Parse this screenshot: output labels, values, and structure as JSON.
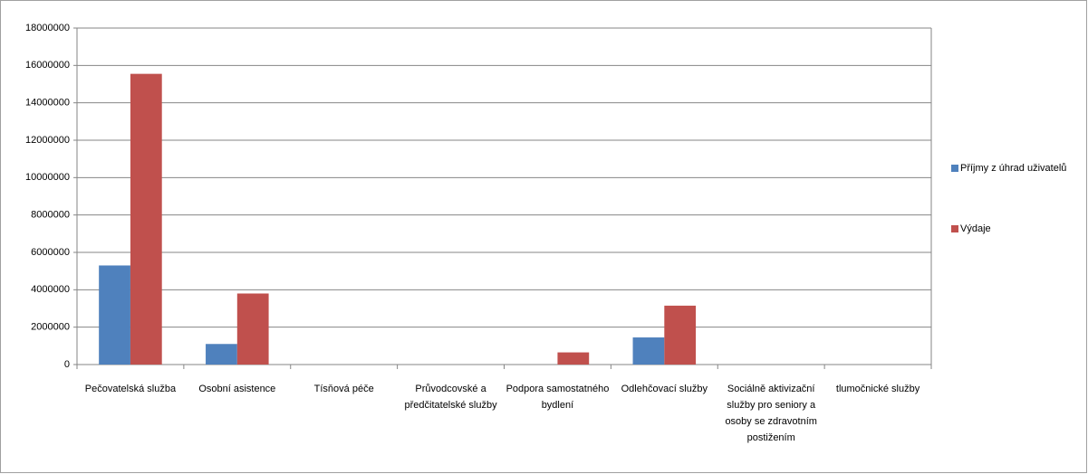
{
  "chart_data": {
    "type": "bar",
    "categories": [
      "Pečovatelská služba",
      "Osobní asistence",
      "Tísňová péče",
      "Průvodcovské a předčitatelské služby",
      "Podpora samostatného bydlení",
      "Odlehčovací služby",
      "Sociálně aktivizační služby pro seniory a osoby se zdravotním postižením",
      "tlumočnické služby"
    ],
    "series": [
      {
        "name": "Příjmy z úhrad uživatelů",
        "color": "#4f81bd",
        "values": [
          5300000,
          1100000,
          0,
          0,
          0,
          1450000,
          0,
          0
        ]
      },
      {
        "name": "Výdaje",
        "color": "#c0504d",
        "values": [
          15550000,
          3800000,
          0,
          0,
          650000,
          3150000,
          0,
          0
        ]
      }
    ],
    "ylim": [
      0,
      18000000
    ],
    "yticks": [
      0,
      2000000,
      4000000,
      6000000,
      8000000,
      10000000,
      12000000,
      14000000,
      16000000,
      18000000
    ],
    "grid": true,
    "legend": "right"
  }
}
